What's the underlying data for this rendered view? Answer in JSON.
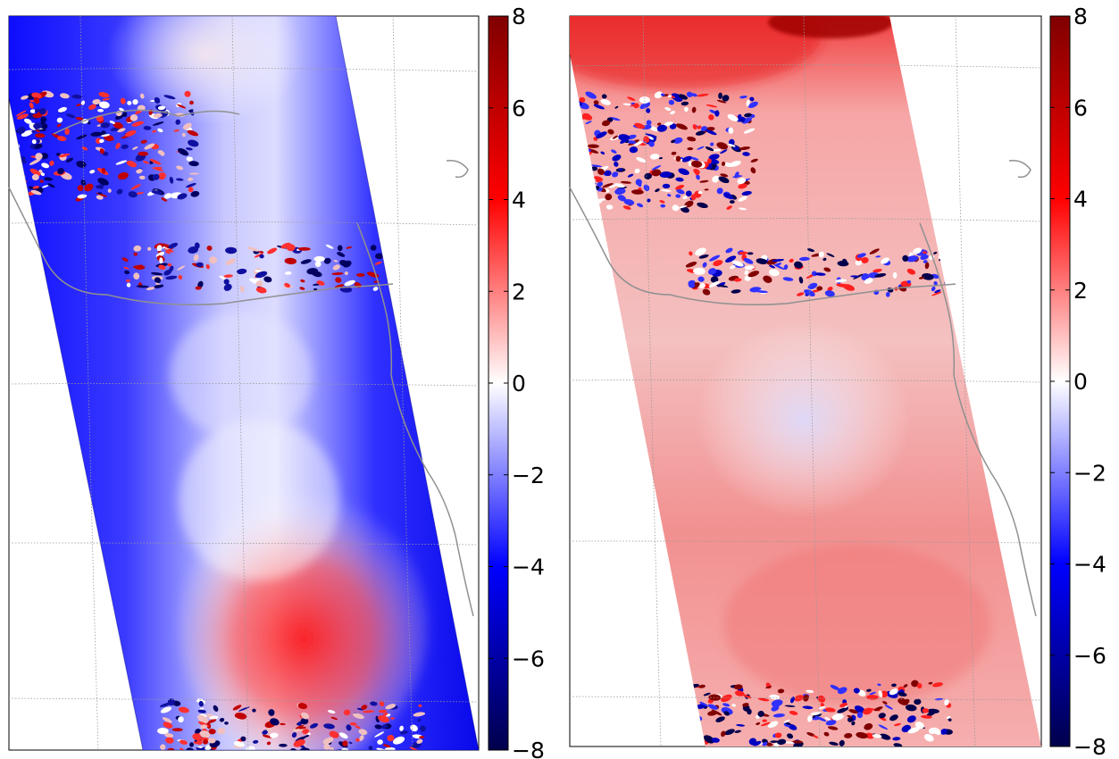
{
  "colorbar": {
    "colormap": "seismic",
    "colors": [
      "#00004c",
      "#0000ff",
      "#ffffff",
      "#ff0000",
      "#800000"
    ],
    "min": -8,
    "max": 8,
    "ticks": [
      8,
      6,
      4,
      2,
      0,
      -2,
      -4,
      -6,
      -8
    ],
    "tick_labels": [
      "8",
      "6",
      "4",
      "2",
      "0",
      "−2",
      "−4",
      "−6",
      "−8"
    ]
  },
  "panels": [
    {
      "name": "left-map"
    },
    {
      "name": "right-map"
    }
  ],
  "map": {
    "graticule_color": "#999999",
    "coastline_color": "#909090",
    "background": "#ffffff"
  }
}
